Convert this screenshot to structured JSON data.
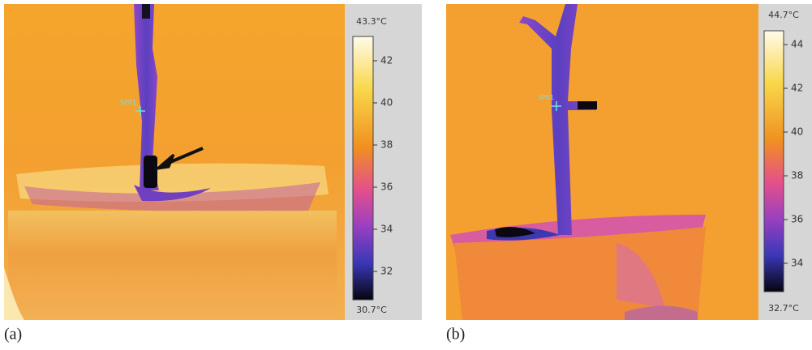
{
  "panels": [
    {
      "label": "(a)",
      "max": "43.3°C",
      "min": "30.7°C",
      "ticks": [
        "42",
        "40",
        "38",
        "36",
        "34",
        "32"
      ],
      "spot": "SP01"
    },
    {
      "label": "(b)",
      "max": "44.7°C",
      "min": "32.7°C",
      "ticks": [
        "44",
        "42",
        "40",
        "38",
        "36",
        "34"
      ],
      "spot": "SP01"
    }
  ]
}
